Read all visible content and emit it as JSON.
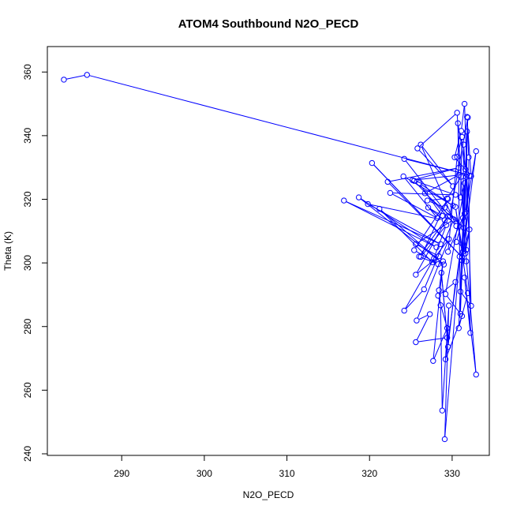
{
  "chart_data": {
    "type": "line",
    "title": "ATOM4 Southbound N2O_PECD",
    "xlabel": "N2O_PECD",
    "ylabel": "Theta (K)",
    "xlim": [
      281,
      334.5
    ],
    "ylim": [
      239.5,
      368
    ],
    "x_ticks": [
      290,
      300,
      310,
      320,
      330
    ],
    "y_ticks": [
      240,
      260,
      280,
      300,
      320,
      340,
      360
    ],
    "grid": false,
    "legend": "none",
    "series": [
      {
        "color": "#0000ff",
        "marker": "open-circle",
        "points": [
          [
            283,
            357.6
          ],
          [
            285.8,
            359.1
          ],
          [
            331.8,
            327.8
          ],
          [
            324.2,
            332.7
          ],
          [
            329.7,
            314.5
          ],
          [
            331.9,
            345.7
          ],
          [
            331.2,
            300.8
          ],
          [
            332.9,
            335.1
          ],
          [
            331.6,
            315.9
          ],
          [
            332.1,
            327.4
          ],
          [
            331,
            291
          ],
          [
            332.3,
            286.5
          ],
          [
            331.5,
            350
          ],
          [
            331.1,
            341.5
          ],
          [
            330.3,
            333.2
          ],
          [
            332.3,
            327.3
          ],
          [
            331.8,
            345.9
          ],
          [
            332,
            333.2
          ],
          [
            332.2,
            278
          ],
          [
            331.5,
            295.4
          ],
          [
            332.9,
            264.9
          ],
          [
            331.3,
            314.1
          ],
          [
            331.4,
            337.2
          ],
          [
            331.6,
            329.4
          ],
          [
            330.7,
            343.9
          ],
          [
            331,
            284
          ],
          [
            331.8,
            341.3
          ],
          [
            331.7,
            304.1
          ],
          [
            330.5,
            306.6
          ],
          [
            331.5,
            315.5
          ],
          [
            329.5,
            303.5
          ],
          [
            330.6,
            333.3
          ],
          [
            331.2,
            339.6
          ],
          [
            331,
            320.6
          ],
          [
            331.5,
            325.1
          ],
          [
            330.8,
            279.5
          ],
          [
            331.9,
            290.5
          ],
          [
            330.4,
            317.6
          ],
          [
            331.3,
            303.5
          ],
          [
            331.7,
            327
          ],
          [
            329.2,
            290.2
          ],
          [
            331.2,
            283.3
          ],
          [
            329.2,
            269.7
          ],
          [
            330.9,
            302
          ],
          [
            329.1,
            244.6
          ],
          [
            329.6,
            286.6
          ],
          [
            328.8,
            253.6
          ],
          [
            328.6,
            286.7
          ],
          [
            328.4,
            291.4
          ],
          [
            328.9,
            300.5
          ],
          [
            327.7,
            269.2
          ],
          [
            329.4,
            279.5
          ],
          [
            328.3,
            289.7
          ],
          [
            330.4,
            294
          ],
          [
            329.5,
            273.6
          ],
          [
            328.7,
            296.9
          ],
          [
            329.4,
            276.5
          ],
          [
            325.6,
            275.1
          ],
          [
            327.3,
            283.9
          ],
          [
            325.7,
            281.9
          ],
          [
            329.6,
            307.5
          ],
          [
            327.8,
            301.4
          ],
          [
            324.2,
            285
          ],
          [
            326.6,
            291.7
          ],
          [
            330.2,
            313.7
          ],
          [
            325.6,
            305.9
          ],
          [
            328.4,
            302.1
          ],
          [
            325.6,
            296.3
          ],
          [
            329.5,
            314.7
          ],
          [
            326,
            302
          ],
          [
            328.3,
            299.6
          ],
          [
            325.4,
            304
          ],
          [
            329.5,
            320.1
          ],
          [
            326.2,
            301.9
          ],
          [
            329.3,
            311.9
          ],
          [
            327.6,
            300.2
          ],
          [
            321.2,
            317
          ],
          [
            329,
            299.5
          ],
          [
            318.7,
            320.6
          ],
          [
            328.1,
            304.9
          ],
          [
            316.9,
            319.6
          ],
          [
            328.6,
            305.9
          ],
          [
            319.8,
            318.5
          ],
          [
            329.1,
            313.4
          ],
          [
            327.1,
            317.4
          ],
          [
            328.8,
            314.8
          ],
          [
            326,
            325.1
          ],
          [
            330.1,
            318
          ],
          [
            324.1,
            327.2
          ],
          [
            328.2,
            314.1
          ],
          [
            322.5,
            322
          ],
          [
            330.4,
            321.4
          ],
          [
            325.4,
            325.8
          ],
          [
            330.5,
            311.6
          ],
          [
            326.2,
            337.2
          ],
          [
            330.1,
            324.1
          ],
          [
            325.8,
            336
          ],
          [
            330.6,
            347.2
          ],
          [
            331.6,
            303
          ],
          [
            332.1,
            310.5
          ],
          [
            331.2,
            301.8
          ],
          [
            320.3,
            331.4
          ],
          [
            331.7,
            300.5
          ],
          [
            322.2,
            325.5
          ],
          [
            330.8,
            329.9
          ],
          [
            325.2,
            326
          ],
          [
            330.8,
            327.6
          ],
          [
            326.7,
            321.9
          ],
          [
            331.4,
            311
          ],
          [
            329.1,
            317.4
          ],
          [
            327,
            319.6
          ],
          [
            329.4,
            320.3
          ],
          [
            331.1,
            327.1
          ]
        ]
      }
    ]
  }
}
